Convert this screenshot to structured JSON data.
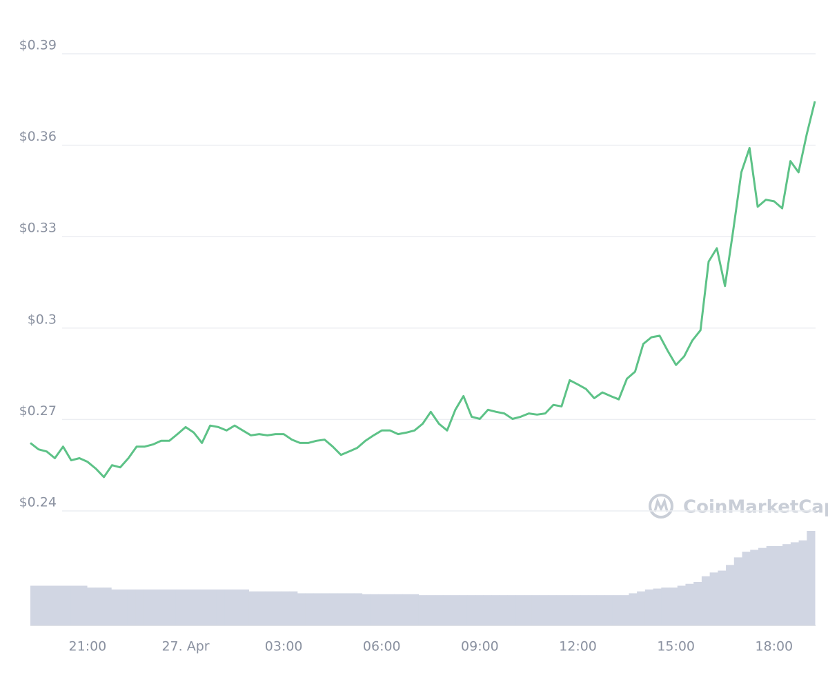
{
  "chart_data": {
    "type": "line",
    "watermark": "CoinMarketCap",
    "categories": [
      null,
      null,
      null,
      null,
      null,
      null,
      null,
      "21:00",
      null,
      null,
      null,
      null,
      null,
      null,
      null,
      null,
      null,
      null,
      null,
      "27. Apr",
      null,
      null,
      null,
      null,
      null,
      null,
      null,
      null,
      null,
      null,
      null,
      "03:00",
      null,
      null,
      null,
      null,
      null,
      null,
      null,
      null,
      null,
      null,
      null,
      "06:00",
      null,
      null,
      null,
      null,
      null,
      null,
      null,
      null,
      null,
      null,
      null,
      "09:00",
      null,
      null,
      null,
      null,
      null,
      null,
      null,
      null,
      null,
      null,
      null,
      "12:00",
      null,
      null,
      null,
      null,
      null,
      null,
      null,
      null,
      null,
      null,
      null,
      "15:00",
      null,
      null,
      null,
      null,
      null,
      null,
      null,
      null,
      null,
      null,
      null,
      "18:00",
      null,
      null,
      null,
      null,
      null
    ],
    "series": [
      {
        "color": "#5dc287",
        "values": [
          0.2623,
          0.2602,
          0.2595,
          0.2573,
          0.2611,
          0.2566,
          0.2573,
          0.2561,
          0.2539,
          0.2511,
          0.255,
          0.2543,
          0.2573,
          0.2611,
          0.2611,
          0.2618,
          0.263,
          0.263,
          0.2652,
          0.2675,
          0.2657,
          0.2623,
          0.268,
          0.2675,
          0.2664,
          0.268,
          0.2664,
          0.2648,
          0.2652,
          0.2648,
          0.2652,
          0.2652,
          0.2634,
          0.2623,
          0.2623,
          0.263,
          0.2634,
          0.2611,
          0.2584,
          0.2595,
          0.2607,
          0.263,
          0.2648,
          0.2664,
          0.2664,
          0.2652,
          0.2657,
          0.2664,
          0.2686,
          0.2725,
          0.2686,
          0.2664,
          0.2732,
          0.2777,
          0.2709,
          0.2702,
          0.2732,
          0.2725,
          0.272,
          0.2702,
          0.2709,
          0.272,
          0.2716,
          0.272,
          0.2748,
          0.2743,
          0.2829,
          0.2815,
          0.28,
          0.277,
          0.2789,
          0.2777,
          0.2766,
          0.2834,
          0.2857,
          0.2948,
          0.297,
          0.2975,
          0.2925,
          0.2879,
          0.2907,
          0.2959,
          0.2993,
          0.3218,
          0.3262,
          0.3138,
          0.332,
          0.3511,
          0.3591,
          0.3398,
          0.3421,
          0.3416,
          0.3393,
          0.3548,
          0.3511,
          0.3636,
          0.3744
        ]
      },
      {
        "type": "bar",
        "axis": "y2",
        "color": "#d1d6e3",
        "values": [
          42,
          42,
          42,
          42,
          42,
          42,
          42,
          40,
          40,
          40,
          38,
          38,
          38,
          38,
          38,
          38,
          38,
          38,
          38,
          38,
          38,
          38,
          38,
          38,
          38,
          38,
          38,
          36,
          36,
          36,
          36,
          36,
          36,
          34,
          34,
          34,
          34,
          34,
          34,
          34,
          34,
          33,
          33,
          33,
          33,
          33,
          33,
          33,
          32,
          32,
          32,
          32,
          32,
          32,
          32,
          32,
          32,
          32,
          32,
          32,
          32,
          32,
          32,
          32,
          32,
          32,
          32,
          32,
          32,
          32,
          32,
          32,
          32,
          32,
          34,
          36,
          38,
          39,
          40,
          40,
          42,
          44,
          46,
          52,
          56,
          58,
          64,
          72,
          78,
          80,
          82,
          84,
          84,
          86,
          88,
          90,
          100
        ]
      }
    ],
    "ylim": [
      0.24,
      0.39
    ],
    "yticks": [
      {
        "value": 0.24,
        "label": "$0.24"
      },
      {
        "value": 0.27,
        "label": "$0.27"
      },
      {
        "value": 0.3,
        "label": "$0.3"
      },
      {
        "value": 0.33,
        "label": "$0.33"
      },
      {
        "value": 0.36,
        "label": "$0.36"
      },
      {
        "value": 0.39,
        "label": "$0.39"
      }
    ],
    "y2lim": [
      0,
      100
    ],
    "grid": true
  }
}
